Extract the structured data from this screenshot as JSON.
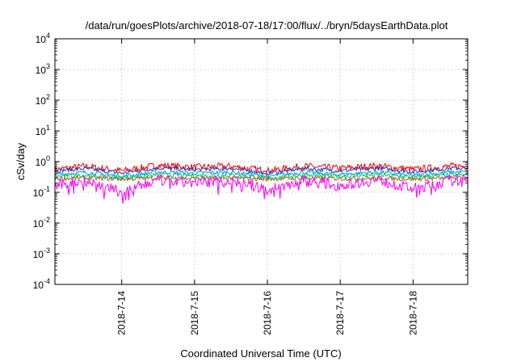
{
  "chart_data": {
    "type": "line",
    "title": "/data/run/goesPlots/archive/2018-07-18/17:00/flux/../bryn/5daysEarthData.plot",
    "xlabel": "Coordinated Universal Time (UTC)",
    "ylabel": "cSv/day",
    "yscale": "log",
    "ylim": [
      0.0001,
      10000
    ],
    "xlim": [
      "2018-07-13 02:00",
      "2018-07-18 18:00"
    ],
    "grid": true,
    "ytick_labels": [
      {
        "base": "10",
        "exp": "4"
      },
      {
        "base": "10",
        "exp": "3"
      },
      {
        "base": "10",
        "exp": "2"
      },
      {
        "base": "10",
        "exp": "1"
      },
      {
        "base": "10",
        "exp": "0"
      },
      {
        "base": "10",
        "exp": "-1"
      },
      {
        "base": "10",
        "exp": "-2"
      },
      {
        "base": "10",
        "exp": "-3"
      },
      {
        "base": "10",
        "exp": "-4"
      }
    ],
    "xtick_labels": [
      "2018-7-14",
      "2018-7-15",
      "2018-7-16",
      "2018-7-17",
      "2018-7-18"
    ],
    "x": [
      "2018-07-13 02:00",
      "2018-07-13 12:00",
      "2018-07-14 00:00",
      "2018-07-14 12:00",
      "2018-07-15 00:00",
      "2018-07-15 12:00",
      "2018-07-16 00:00",
      "2018-07-16 12:00",
      "2018-07-17 00:00",
      "2018-07-17 12:00",
      "2018-07-18 00:00",
      "2018-07-18 12:00",
      "2018-07-18 18:00"
    ],
    "series": [
      {
        "color": "#ff0000",
        "values": [
          0.55,
          0.7,
          0.5,
          0.75,
          0.65,
          0.7,
          0.5,
          0.7,
          0.6,
          0.72,
          0.55,
          0.7,
          0.72
        ]
      },
      {
        "color": "#1e3cc8",
        "values": [
          0.5,
          0.6,
          0.42,
          0.62,
          0.55,
          0.6,
          0.42,
          0.6,
          0.5,
          0.62,
          0.46,
          0.6,
          0.62
        ]
      },
      {
        "color": "#0a9bdc",
        "values": [
          0.38,
          0.45,
          0.33,
          0.46,
          0.42,
          0.45,
          0.33,
          0.45,
          0.38,
          0.46,
          0.35,
          0.45,
          0.46
        ]
      },
      {
        "color": "#00c860",
        "values": [
          0.33,
          0.36,
          0.3,
          0.37,
          0.35,
          0.36,
          0.3,
          0.36,
          0.33,
          0.37,
          0.31,
          0.36,
          0.37
        ]
      },
      {
        "color": "#a06020",
        "values": [
          0.28,
          0.29,
          0.27,
          0.29,
          0.28,
          0.29,
          0.27,
          0.29,
          0.28,
          0.29,
          0.27,
          0.29,
          0.29
        ]
      },
      {
        "color": "#ff00ff",
        "values": [
          0.16,
          0.24,
          0.1,
          0.25,
          0.2,
          0.24,
          0.12,
          0.24,
          0.17,
          0.25,
          0.13,
          0.24,
          0.25
        ]
      }
    ]
  }
}
